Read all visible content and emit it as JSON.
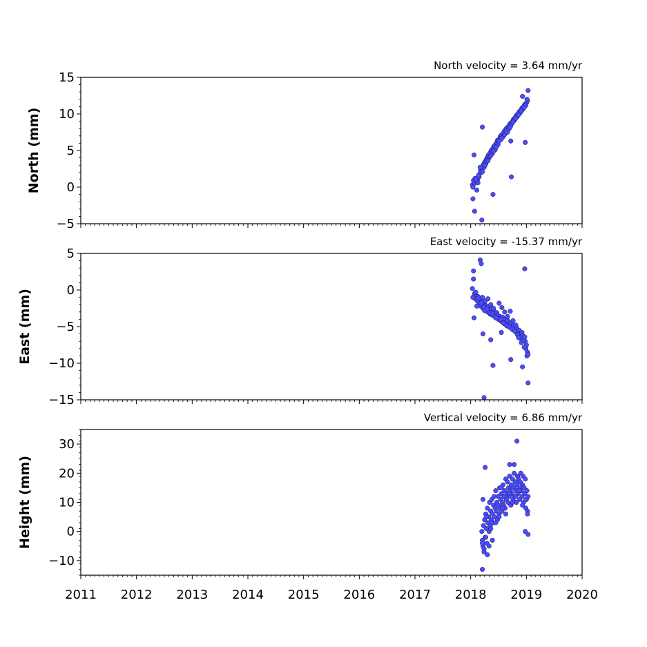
{
  "chart_data": [
    {
      "type": "scatter",
      "title": "North velocity = 3.64 mm/yr",
      "ylabel": "North (mm)",
      "ylim": [
        -5,
        15
      ],
      "yticks": [
        -5,
        0,
        5,
        10,
        15
      ],
      "yticklabels": [
        "−5",
        "0",
        "5",
        "10",
        "15"
      ],
      "xlim": [
        2011,
        2020
      ],
      "show_xticklabels": false,
      "marker_color": "#4b4bff",
      "series": [
        {
          "x": [
            2018.03,
            2018.05,
            2018.07,
            2018.08,
            2018.1,
            2018.12,
            2018.13,
            2018.15,
            2018.17,
            2018.18,
            2018.2,
            2018.22,
            2018.23,
            2018.25,
            2018.27,
            2018.28,
            2018.3,
            2018.32,
            2018.33,
            2018.35,
            2018.37,
            2018.38,
            2018.4,
            2018.42,
            2018.43,
            2018.45,
            2018.47,
            2018.48,
            2018.5,
            2018.52,
            2018.53,
            2018.55,
            2018.57,
            2018.58,
            2018.6,
            2018.62,
            2018.63,
            2018.65,
            2018.67,
            2018.68,
            2018.7,
            2018.72,
            2018.73,
            2018.75,
            2018.77,
            2018.78,
            2018.8,
            2018.82,
            2018.83,
            2018.85,
            2018.87,
            2018.88,
            2018.9,
            2018.92,
            2018.93,
            2018.95,
            2018.97,
            2018.98,
            2019.0,
            2019.02,
            2018.04,
            2018.09,
            2018.14,
            2018.19,
            2018.24,
            2018.29,
            2018.34,
            2018.39,
            2018.44,
            2018.49,
            2018.54,
            2018.59,
            2018.64,
            2018.69,
            2018.74,
            2018.79,
            2018.84,
            2018.89,
            2018.94,
            2018.99,
            2018.11,
            2018.21,
            2018.26,
            2018.31,
            2018.36,
            2018.41,
            2018.46,
            2018.51,
            2018.56,
            2018.61,
            2018.66,
            2018.71,
            2018.76,
            2018.81,
            2018.86,
            2018.91,
            2018.96,
            2019.01,
            2019.03,
            2018.06,
            2018.21,
            2018.72,
            2018.04,
            2018.07,
            2018.2,
            2018.73,
            2018.93,
            2018.98,
            2018.4,
            2018.17
          ],
          "y": [
            0.3,
            0.9,
            0.5,
            1.2,
            0.8,
            1.0,
            0.6,
            1.4,
            1.9,
            2.3,
            2.6,
            2.9,
            3.1,
            3.4,
            3.2,
            3.8,
            4.1,
            4.4,
            4.0,
            4.7,
            5.0,
            4.8,
            5.3,
            5.6,
            5.4,
            5.9,
            6.1,
            6.4,
            6.2,
            6.6,
            6.9,
            7.1,
            6.8,
            7.3,
            7.6,
            7.4,
            7.9,
            8.1,
            7.8,
            8.3,
            8.6,
            8.4,
            8.8,
            9.0,
            9.3,
            9.1,
            9.5,
            9.8,
            9.6,
            10.0,
            10.3,
            10.1,
            10.5,
            10.8,
            10.6,
            11.0,
            11.3,
            11.1,
            11.5,
            11.8,
            0.0,
            1.1,
            1.6,
            2.0,
            2.7,
            3.5,
            4.2,
            4.6,
            5.1,
            5.8,
            6.5,
            7.0,
            7.7,
            8.0,
            8.7,
            9.2,
            9.7,
            10.2,
            10.7,
            11.2,
            -0.4,
            2.1,
            3.0,
            3.6,
            4.3,
            4.9,
            5.5,
            6.3,
            6.7,
            7.2,
            7.5,
            8.2,
            8.9,
            9.4,
            9.9,
            10.4,
            10.9,
            12.0,
            13.2,
            4.4,
            8.2,
            6.3,
            -1.6,
            -3.3,
            -4.5,
            1.4,
            12.4,
            6.1,
            -1.0,
            2.7
          ]
        }
      ]
    },
    {
      "type": "scatter",
      "title": "East velocity = -15.37 mm/yr",
      "ylabel": "East (mm)",
      "ylim": [
        -15,
        5
      ],
      "yticks": [
        -15,
        -10,
        -5,
        0,
        5
      ],
      "yticklabels": [
        "−15",
        "−10",
        "−5",
        "0",
        "5"
      ],
      "xlim": [
        2011,
        2020
      ],
      "show_xticklabels": false,
      "marker_color": "#4b4bff",
      "series": [
        {
          "x": [
            2018.03,
            2018.05,
            2018.07,
            2018.08,
            2018.1,
            2018.12,
            2018.13,
            2018.15,
            2018.17,
            2018.18,
            2018.2,
            2018.22,
            2018.23,
            2018.25,
            2018.27,
            2018.28,
            2018.3,
            2018.32,
            2018.33,
            2018.35,
            2018.37,
            2018.38,
            2018.4,
            2018.42,
            2018.43,
            2018.45,
            2018.47,
            2018.48,
            2018.5,
            2018.52,
            2018.53,
            2018.55,
            2018.57,
            2018.58,
            2018.6,
            2018.62,
            2018.63,
            2018.65,
            2018.67,
            2018.68,
            2018.7,
            2018.72,
            2018.73,
            2018.75,
            2018.77,
            2018.78,
            2018.8,
            2018.82,
            2018.83,
            2018.85,
            2018.87,
            2018.88,
            2018.9,
            2018.92,
            2018.93,
            2018.95,
            2018.97,
            2018.98,
            2019.0,
            2019.02,
            2018.04,
            2018.09,
            2018.14,
            2018.19,
            2018.24,
            2018.29,
            2018.34,
            2018.39,
            2018.44,
            2018.49,
            2018.54,
            2018.59,
            2018.64,
            2018.69,
            2018.74,
            2018.79,
            2018.84,
            2018.89,
            2018.94,
            2018.99,
            2018.11,
            2018.21,
            2018.26,
            2018.31,
            2018.36,
            2018.41,
            2018.46,
            2018.51,
            2018.56,
            2018.61,
            2018.66,
            2018.71,
            2018.76,
            2018.81,
            2018.86,
            2018.91,
            2018.96,
            2019.01,
            2019.03,
            2018.06,
            2018.17,
            2018.19,
            2018.22,
            2018.4,
            2018.55,
            2018.93,
            2019.03,
            2018.97,
            2018.72,
            2018.24,
            2018.36,
            2018.05
          ],
          "y": [
            0.2,
            1.5,
            -0.5,
            -1.2,
            -0.8,
            -1.5,
            -0.9,
            -2.0,
            -1.3,
            -2.2,
            -1.6,
            -2.5,
            -1.9,
            -2.8,
            -2.1,
            -2.4,
            -3.0,
            -2.3,
            -2.7,
            -3.3,
            -2.6,
            -3.0,
            -3.5,
            -2.9,
            -3.2,
            -3.8,
            -3.1,
            -3.4,
            -4.0,
            -3.6,
            -3.9,
            -4.3,
            -3.7,
            -4.1,
            -4.6,
            -4.0,
            -4.4,
            -4.9,
            -4.2,
            -4.7,
            -5.1,
            -4.5,
            -5.0,
            -5.4,
            -4.8,
            -5.3,
            -5.7,
            -5.1,
            -5.6,
            -6.0,
            -5.5,
            -5.9,
            -6.3,
            -5.8,
            -6.2,
            -6.7,
            -6.4,
            -7.0,
            -7.5,
            -8.5,
            -1.0,
            -0.3,
            -1.1,
            -1.8,
            -2.3,
            -2.6,
            -3.1,
            -3.2,
            -3.6,
            -3.9,
            -4.0,
            -4.5,
            -4.8,
            -5.0,
            -5.3,
            -5.6,
            -6.1,
            -6.6,
            -6.9,
            -8.0,
            -2.2,
            -1.0,
            -1.5,
            -1.2,
            -2.0,
            -2.5,
            -3.8,
            -1.8,
            -2.4,
            -3.0,
            -3.6,
            -2.9,
            -4.2,
            -4.8,
            -6.5,
            -7.2,
            -7.8,
            -9.0,
            -8.8,
            -3.8,
            4.1,
            3.6,
            -6.0,
            -10.3,
            -5.8,
            -10.5,
            -12.7,
            2.9,
            -9.5,
            -14.7,
            -6.8,
            2.6
          ]
        }
      ]
    },
    {
      "type": "scatter",
      "title": "Vertical velocity = 6.86 mm/yr",
      "ylabel": "Height (mm)",
      "ylim": [
        -15,
        35
      ],
      "yticks": [
        -10,
        0,
        10,
        20,
        30
      ],
      "yticklabels": [
        "−10",
        "0",
        "10",
        "20",
        "30"
      ],
      "xlim": [
        2011,
        2020
      ],
      "xticks": [
        2011,
        2012,
        2013,
        2014,
        2015,
        2016,
        2017,
        2018,
        2019,
        2020
      ],
      "xticklabels": [
        "2011",
        "2012",
        "2013",
        "2014",
        "2015",
        "2016",
        "2017",
        "2018",
        "2019",
        "2020"
      ],
      "show_xticklabels": true,
      "marker_color": "#4b4bff",
      "series": [
        {
          "x": [
            2018.2,
            2018.21,
            2018.22,
            2018.23,
            2018.24,
            2018.25,
            2018.26,
            2018.27,
            2018.28,
            2018.29,
            2018.3,
            2018.31,
            2018.32,
            2018.33,
            2018.34,
            2018.35,
            2018.36,
            2018.37,
            2018.38,
            2018.39,
            2018.4,
            2018.41,
            2018.42,
            2018.43,
            2018.44,
            2018.45,
            2018.46,
            2018.47,
            2018.48,
            2018.49,
            2018.5,
            2018.51,
            2018.52,
            2018.53,
            2018.54,
            2018.55,
            2018.56,
            2018.57,
            2018.58,
            2018.59,
            2018.6,
            2018.61,
            2018.62,
            2018.63,
            2018.64,
            2018.65,
            2018.66,
            2018.67,
            2018.68,
            2018.69,
            2018.7,
            2018.71,
            2018.72,
            2018.73,
            2018.74,
            2018.75,
            2018.76,
            2018.77,
            2018.78,
            2018.79,
            2018.8,
            2018.81,
            2018.82,
            2018.83,
            2018.84,
            2018.85,
            2018.86,
            2018.87,
            2018.88,
            2018.89,
            2018.9,
            2018.91,
            2018.92,
            2018.93,
            2018.94,
            2018.95,
            2018.96,
            2018.97,
            2018.98,
            2018.99,
            2019.0,
            2019.01,
            2019.02,
            2019.03,
            2018.21,
            2018.24,
            2018.27,
            2018.3,
            2018.33,
            2018.36,
            2018.39,
            2018.45,
            2018.51,
            2018.57,
            2018.63,
            2018.69,
            2018.75,
            2018.81,
            2018.87,
            2018.93,
            2018.99,
            2019.02,
            2018.83,
            2018.21,
            2018.22,
            2018.26,
            2018.28,
            2018.55,
            2018.78,
            2018.98,
            2019.03,
            2018.7
          ],
          "y": [
            0,
            -3,
            -5,
            2,
            -6,
            4,
            -2,
            6,
            1,
            -4,
            8,
            3,
            5,
            0,
            10,
            2,
            7,
            4,
            11,
            6,
            3,
            9,
            12,
            5,
            8,
            14,
            7,
            10,
            4,
            12,
            9,
            6,
            15,
            8,
            11,
            13,
            7,
            10,
            16,
            9,
            12,
            14,
            8,
            18,
            11,
            13,
            17,
            10,
            15,
            12,
            19,
            14,
            9,
            16,
            13,
            18,
            11,
            15,
            20,
            12,
            17,
            14,
            10,
            16,
            19,
            13,
            18,
            15,
            11,
            17,
            20,
            14,
            12,
            16,
            19,
            10,
            15,
            13,
            18,
            8,
            11,
            14,
            7,
            12,
            -4,
            -7,
            -2,
            -8,
            -5,
            1,
            -3,
            3,
            5,
            8,
            6,
            13,
            10,
            12,
            14,
            9,
            11,
            6,
            31,
            -13,
            11,
            22,
            5,
            15,
            23,
            0,
            -1,
            23
          ]
        }
      ]
    }
  ]
}
